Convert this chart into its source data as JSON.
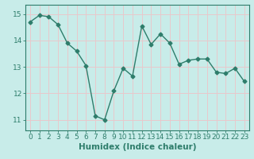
{
  "x": [
    0,
    1,
    2,
    3,
    4,
    5,
    6,
    7,
    8,
    9,
    10,
    11,
    12,
    13,
    14,
    15,
    16,
    17,
    18,
    19,
    20,
    21,
    22,
    23
  ],
  "y": [
    14.7,
    14.95,
    14.9,
    14.6,
    13.9,
    13.6,
    13.05,
    11.15,
    11.0,
    12.1,
    12.95,
    12.65,
    14.55,
    13.85,
    14.25,
    13.9,
    13.1,
    13.25,
    13.3,
    13.3,
    12.8,
    12.75,
    12.95,
    12.45
  ],
  "line_color": "#2e7d6b",
  "marker": "D",
  "marker_size": 2.5,
  "bg_color": "#c8ece9",
  "grid_color": "#e8c8cc",
  "xlabel": "Humidex (Indice chaleur)",
  "ylim": [
    10.6,
    15.35
  ],
  "xlim": [
    -0.5,
    23.5
  ],
  "yticks": [
    11,
    12,
    13,
    14,
    15
  ],
  "xticks": [
    0,
    1,
    2,
    3,
    4,
    5,
    6,
    7,
    8,
    9,
    10,
    11,
    12,
    13,
    14,
    15,
    16,
    17,
    18,
    19,
    20,
    21,
    22,
    23
  ],
  "xlabel_fontsize": 7.5,
  "tick_fontsize": 6.5,
  "tick_color": "#2e7d6b",
  "axis_color": "#2e7d6b",
  "line_width": 1.0
}
